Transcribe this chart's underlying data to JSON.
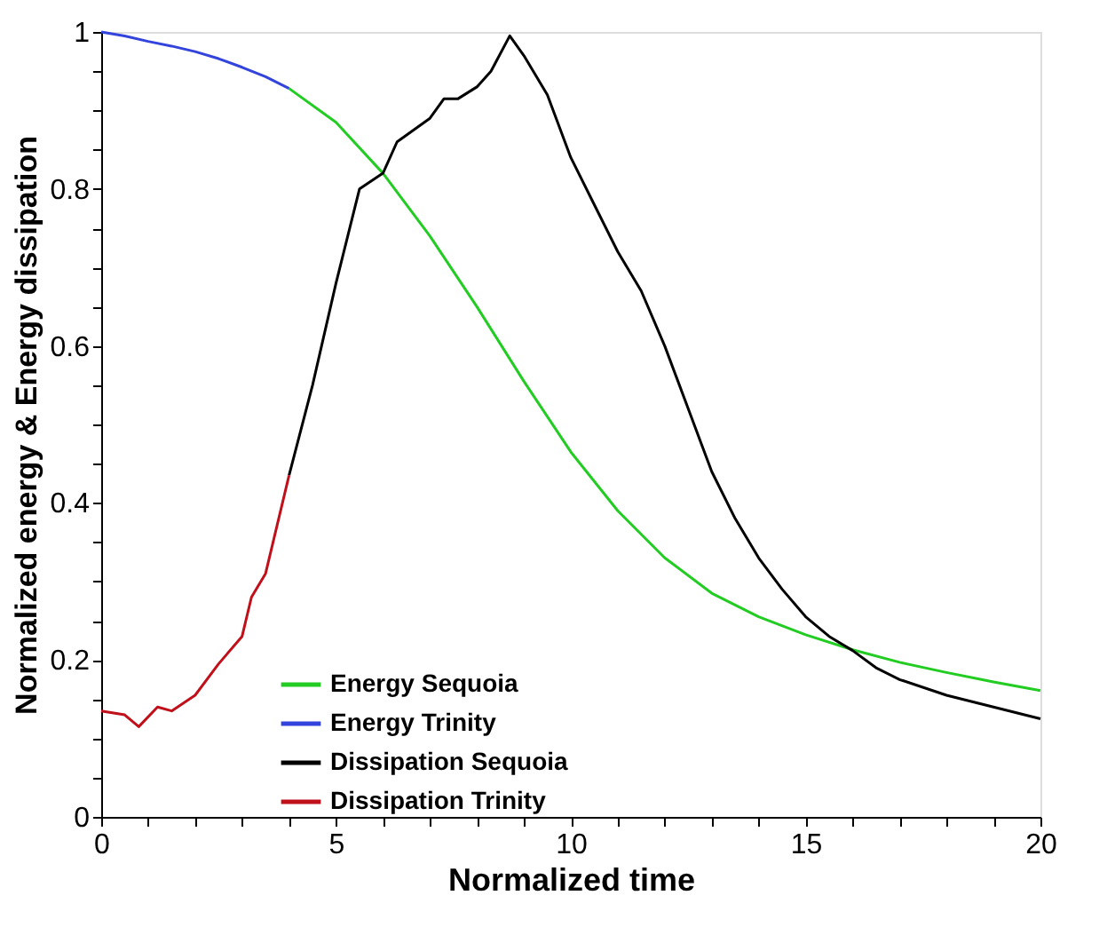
{
  "chart_data": {
    "type": "line",
    "xlabel": "Normalized time",
    "ylabel": "Normalized energy & Energy dissipation",
    "xlim": [
      0,
      20
    ],
    "ylim": [
      0,
      1
    ],
    "xticks": [
      0,
      {
        "value": 1,
        "label": null
      },
      {
        "value": 2,
        "label": null
      },
      {
        "value": 3,
        "label": null
      },
      {
        "value": 4,
        "label": null
      },
      5,
      {
        "value": 6,
        "label": null
      },
      {
        "value": 7,
        "label": null
      },
      {
        "value": 8,
        "label": null
      },
      {
        "value": 9,
        "label": null
      },
      10,
      {
        "value": 11,
        "label": null
      },
      {
        "value": 12,
        "label": null
      },
      {
        "value": 13,
        "label": null
      },
      {
        "value": 14,
        "label": null
      },
      15,
      {
        "value": 16,
        "label": null
      },
      {
        "value": 17,
        "label": null
      },
      {
        "value": 18,
        "label": null
      },
      {
        "value": 19,
        "label": null
      },
      20
    ],
    "yticks": [
      0,
      {
        "value": 0.05,
        "label": null
      },
      {
        "value": 0.1,
        "label": null
      },
      {
        "value": 0.15,
        "label": null
      },
      0.2,
      {
        "value": 0.25,
        "label": null
      },
      {
        "value": 0.3,
        "label": null
      },
      {
        "value": 0.35,
        "label": null
      },
      0.4,
      {
        "value": 0.45,
        "label": null
      },
      {
        "value": 0.5,
        "label": null
      },
      {
        "value": 0.55,
        "label": null
      },
      0.6,
      {
        "value": 0.65,
        "label": null
      },
      {
        "value": 0.7,
        "label": null
      },
      {
        "value": 0.75,
        "label": null
      },
      0.8,
      {
        "value": 0.85,
        "label": null
      },
      {
        "value": 0.9,
        "label": null
      },
      {
        "value": 0.95,
        "label": null
      },
      1
    ],
    "grid": false,
    "legend": "bottom",
    "marker": "none",
    "line_style": "solid",
    "series": [
      {
        "name": "Energy Sequoia",
        "color": "#22cc22",
        "x": [
          4,
          5,
          6,
          7,
          8,
          9,
          10,
          11,
          12,
          13,
          14,
          15,
          16,
          17,
          18,
          19,
          20
        ],
        "values": [
          0.928,
          0.885,
          0.82,
          0.74,
          0.65,
          0.555,
          0.465,
          0.39,
          0.33,
          0.285,
          0.255,
          0.232,
          0.213,
          0.197,
          0.184,
          0.172,
          0.161
        ]
      },
      {
        "name": "Energy Trinity",
        "color": "#3344dd",
        "x": [
          0,
          0.5,
          1,
          1.5,
          2,
          2.5,
          3,
          3.5,
          4
        ],
        "values": [
          1.0,
          0.995,
          0.988,
          0.982,
          0.975,
          0.966,
          0.955,
          0.943,
          0.928
        ]
      },
      {
        "name": "Dissipation Sequoia",
        "color": "#000000",
        "x": [
          4,
          4.5,
          5,
          5.5,
          6,
          6.3,
          7,
          7.3,
          7.6,
          8,
          8.3,
          8.7,
          9,
          9.5,
          10,
          10.5,
          11,
          11.5,
          12,
          12.5,
          13,
          13.5,
          14,
          14.5,
          15,
          15.5,
          16,
          16.5,
          17,
          18,
          19,
          20
        ],
        "values": [
          0.435,
          0.55,
          0.68,
          0.8,
          0.82,
          0.86,
          0.89,
          0.915,
          0.915,
          0.93,
          0.95,
          0.995,
          0.97,
          0.92,
          0.84,
          0.78,
          0.72,
          0.67,
          0.6,
          0.52,
          0.44,
          0.38,
          0.33,
          0.29,
          0.255,
          0.23,
          0.212,
          0.19,
          0.175,
          0.155,
          0.14,
          0.125
        ]
      },
      {
        "name": "Dissipation Trinity",
        "color": "#c0101a",
        "x": [
          0,
          0.5,
          0.8,
          1.2,
          1.5,
          2,
          2.5,
          3,
          3.2,
          3.5,
          4
        ],
        "values": [
          0.135,
          0.13,
          0.115,
          0.14,
          0.135,
          0.155,
          0.195,
          0.23,
          0.28,
          0.31,
          0.435
        ]
      }
    ]
  }
}
